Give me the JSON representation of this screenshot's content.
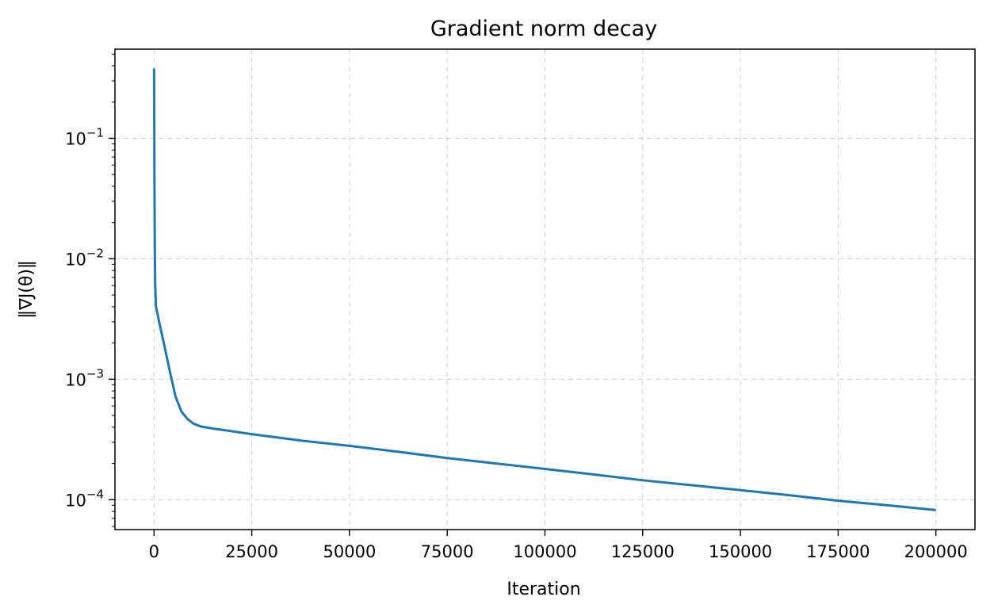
{
  "chart_data": {
    "type": "line",
    "title": "Gradient norm decay",
    "xlabel": "Iteration",
    "ylabel": "‖∇J(θ)‖",
    "xlim": [
      -10000,
      210000
    ],
    "ylim": [
      5.65e-05,
      0.55
    ],
    "yscale": "log",
    "grid": true,
    "legend": "none",
    "line_color": "#1f77b4",
    "x_ticks": [
      0,
      25000,
      50000,
      75000,
      100000,
      125000,
      150000,
      175000,
      200000
    ],
    "x_tick_labels": [
      "0",
      "25000",
      "50000",
      "75000",
      "100000",
      "125000",
      "150000",
      "175000",
      "200000"
    ],
    "y_ticks": [
      0.0001,
      0.001,
      0.01,
      0.1
    ],
    "y_tick_exponents": [
      "−4",
      "−3",
      "−2",
      "−1"
    ],
    "y_tick_base": "10",
    "series": [
      {
        "x": [
          0,
          50,
          100,
          200,
          300,
          500,
          800,
          1500,
          2500,
          4000,
          5500,
          7000,
          8500,
          10000,
          12000,
          15000,
          20000,
          25000,
          37500,
          50000,
          62500,
          75000,
          87500,
          100000,
          112500,
          125000,
          137500,
          150000,
          162500,
          175000,
          187500,
          200000
        ],
        "y": [
          0.38,
          0.2,
          0.05,
          0.012,
          0.006,
          0.004,
          0.0036,
          0.0028,
          0.002,
          0.00118,
          0.00072,
          0.00054,
          0.00047,
          0.00043,
          0.000405,
          0.00039,
          0.00037,
          0.00035,
          0.00031,
          0.00028,
          0.00025,
          0.000222,
          0.0002,
          0.00018,
          0.000162,
          0.000145,
          0.000132,
          0.00012,
          0.000109,
          9.8e-05,
          9e-05,
          8.2e-05
        ]
      }
    ]
  }
}
